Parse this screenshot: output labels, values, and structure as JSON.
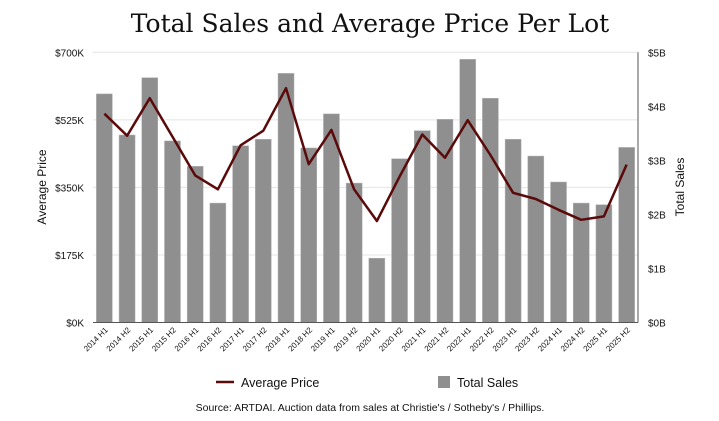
{
  "chart_data": {
    "type": "bar+line",
    "title": "Total Sales and Average Price Per Lot",
    "ylabel_left": "Average Price",
    "ylabel_right": "Total Sales",
    "ylim_left": [
      0,
      700000
    ],
    "ylim_right": [
      0,
      5000000000
    ],
    "left_ticks": [
      "$0K",
      "$175K",
      "$350K",
      "$525K",
      "$700K"
    ],
    "right_ticks": [
      "$0B",
      "$1B",
      "$2B",
      "$3B",
      "$4B",
      "$5B"
    ],
    "grid": true,
    "legend_placement": "bottom",
    "categories": [
      "2014 H1",
      "2014 H2",
      "2015 H1",
      "2015 H2",
      "2016 H1",
      "2016 H2",
      "2017 H1",
      "2017 H2",
      "2018 H1",
      "2018 H2",
      "2019 H1",
      "2019 H2",
      "2020 H1",
      "2020 H2",
      "2021 H1",
      "2021 H2",
      "2022 H1",
      "2022 H2",
      "2023 H1",
      "2023 H2",
      "2024 H1",
      "2024 H2",
      "2025 H1",
      "2025 H2"
    ],
    "series": [
      {
        "name": "Average Price",
        "type": "line",
        "axis": "left",
        "color": "#5a0a0a",
        "values": [
          541000,
          484000,
          581000,
          481000,
          381000,
          345000,
          459000,
          497000,
          607000,
          410000,
          499000,
          345000,
          263000,
          378000,
          487000,
          427000,
          524000,
          434000,
          336000,
          320000,
          292000,
          266000,
          275000,
          409000
        ]
      },
      {
        "name": "Total Sales",
        "type": "bar",
        "axis": "right",
        "color": "#8f8f8f",
        "values": [
          4230000000.0,
          3470000000.0,
          4530000000.0,
          3360000000.0,
          2890000000.0,
          2210000000.0,
          3270000000.0,
          3390000000.0,
          4610000000.0,
          3230000000.0,
          3860000000.0,
          2580000000.0,
          1190000000.0,
          3030000000.0,
          3550000000.0,
          3760000000.0,
          4870000000.0,
          4150000000.0,
          3390000000.0,
          3080000000.0,
          2600000000.0,
          2210000000.0,
          2180000000.0,
          3240000000.0
        ]
      }
    ],
    "source": "Source: ARTDAI. Auction data from sales at Christie's / Sotheby's / Phillips."
  }
}
